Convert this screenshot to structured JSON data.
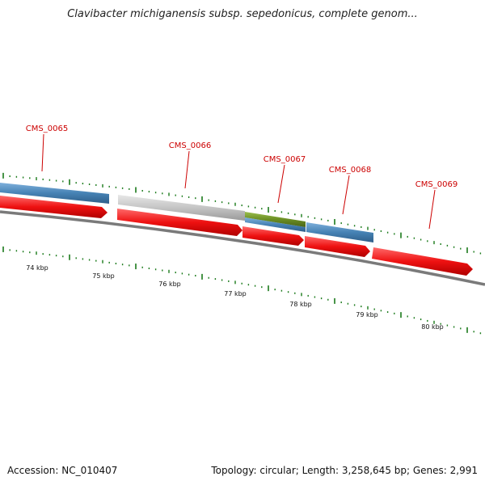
{
  "title": "Clavibacter michiganensis subsp. sepedonicus, complete genom...",
  "footer": {
    "accession": "Accession: NC_010407",
    "summary": "Topology: circular; Length: 3,258,645 bp; Genes: 2,991"
  },
  "colors": {
    "label": "#cc0000",
    "tick": "#1a7a1a",
    "cds": "#ee1111",
    "gene_blue": "#4682b4",
    "gene_grey": "#bdbdbd",
    "gene_green": "#6b8e23",
    "backbone": "#808080"
  },
  "genes": [
    {
      "name": "CMS_0065"
    },
    {
      "name": "CMS_0066"
    },
    {
      "name": "CMS_0067"
    },
    {
      "name": "CMS_0068"
    },
    {
      "name": "CMS_0069"
    }
  ],
  "scale_labels": [
    "74 kbp",
    "75 kbp",
    "76 kbp",
    "77 kbp",
    "78 kbp",
    "79 kbp",
    "80 kbp"
  ]
}
